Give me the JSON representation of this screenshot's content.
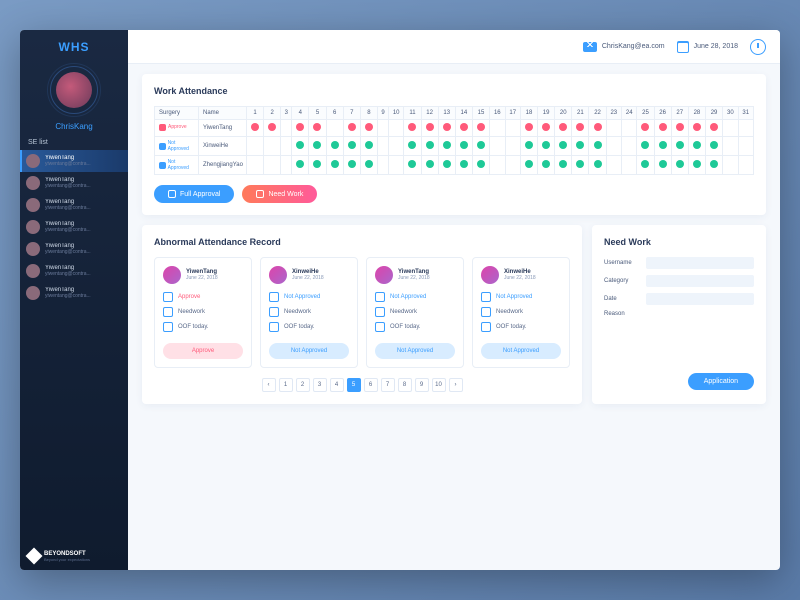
{
  "brand": "WHS",
  "user": {
    "name": "ChrisKang"
  },
  "topbar": {
    "email": "ChrisKang@ea.com",
    "date": "June 28, 2018"
  },
  "sidebar": {
    "section": "SE list",
    "items": [
      {
        "name": "YiwenTang",
        "email": "yiwentang@contra..."
      },
      {
        "name": "YiwenTang",
        "email": "yiwentang@contra..."
      },
      {
        "name": "YiwenTang",
        "email": "yiwentang@contra..."
      },
      {
        "name": "YiwenTang",
        "email": "yiwentang@contra..."
      },
      {
        "name": "YiwenTang",
        "email": "yiwentang@contra..."
      },
      {
        "name": "YiwenTang",
        "email": "yiwentang@contra..."
      },
      {
        "name": "YiwenTang",
        "email": "yiwentang@contra..."
      }
    ],
    "footer": {
      "brand": "BEYONDSOFT",
      "sub": "Beyond your expectations"
    }
  },
  "attendance": {
    "title": "Work Attendance",
    "headers": {
      "surgery": "Surgery",
      "name": "Name"
    },
    "days": 31,
    "rows": [
      {
        "status": "Approve",
        "statusType": "approve",
        "name": "YiwenTang",
        "marks": {
          "1": "r",
          "2": "r",
          "4": "r",
          "5": "r",
          "7": "r",
          "8": "r",
          "11": "r",
          "12": "r",
          "13": "r",
          "14": "r",
          "15": "r",
          "18": "r",
          "19": "r",
          "20": "r",
          "21": "r",
          "22": "r",
          "25": "r",
          "26": "r",
          "27": "r",
          "28": "r",
          "29": "r"
        }
      },
      {
        "status": "Not Approved",
        "statusType": "notapp",
        "name": "XinweiHe",
        "marks": {
          "4": "g",
          "5": "g",
          "6": "g",
          "7": "g",
          "8": "g",
          "11": "g",
          "12": "g",
          "13": "g",
          "14": "g",
          "15": "g",
          "18": "g",
          "19": "g",
          "20": "g",
          "21": "g",
          "22": "g",
          "25": "g",
          "26": "g",
          "27": "g",
          "28": "g",
          "29": "g"
        }
      },
      {
        "status": "Not Approved",
        "statusType": "notapp",
        "name": "ZhengjiangYao",
        "marks": {
          "4": "g",
          "5": "g",
          "6": "g",
          "7": "g",
          "8": "g",
          "11": "g",
          "12": "g",
          "13": "g",
          "14": "g",
          "15": "g",
          "18": "g",
          "19": "g",
          "20": "g",
          "21": "g",
          "22": "g",
          "25": "g",
          "26": "g",
          "27": "g",
          "28": "g",
          "29": "g"
        }
      }
    ],
    "buttons": {
      "full": "Full Approval",
      "need": "Need Work"
    }
  },
  "abnormal": {
    "title": "Abnormal Attendance Record",
    "cards": [
      {
        "name": "YiwenTang",
        "date": "June 22, 2018",
        "status": "Approve",
        "statusType": "approve",
        "need": "Needwork",
        "oof": "OOF today.",
        "btn": "Approve",
        "btnType": "pink"
      },
      {
        "name": "XinweiHe",
        "date": "June 22, 2018",
        "status": "Not Approved",
        "statusType": "notapp",
        "need": "Needwork",
        "oof": "OOF today.",
        "btn": "Not Approved",
        "btnType": "blue"
      },
      {
        "name": "YiwenTang",
        "date": "June 22, 2018",
        "status": "Not Approved",
        "statusType": "notapp",
        "need": "Needwork",
        "oof": "OOF today.",
        "btn": "Not Approved",
        "btnType": "blue"
      },
      {
        "name": "XinweiHe",
        "date": "June 22, 2018",
        "status": "Not Approved",
        "statusType": "notapp",
        "need": "Needwork",
        "oof": "OOF today.",
        "btn": "Not Approved",
        "btnType": "blue"
      }
    ],
    "pagination": {
      "pages": 10,
      "active": 5
    }
  },
  "needwork": {
    "title": "Need Work",
    "fields": {
      "username": "Username",
      "category": "Category",
      "date": "Date",
      "reason": "Reason"
    },
    "submit": "Application"
  },
  "colors": {
    "accent": "#3b9eff",
    "green": "#1ec997",
    "red": "#ff5a7a",
    "pinkGrad1": "#ff7a5a",
    "pinkGrad2": "#ff5a9a"
  }
}
